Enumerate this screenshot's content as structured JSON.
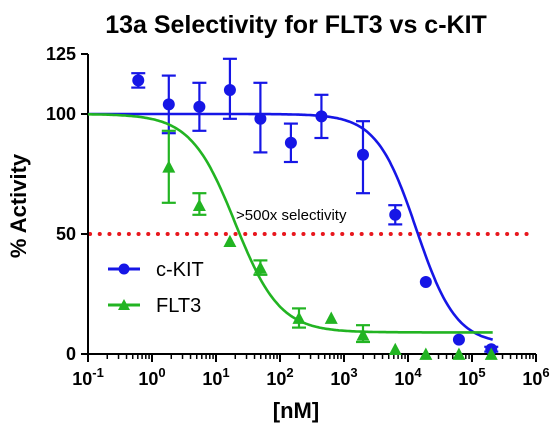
{
  "chart_data": {
    "type": "scatter",
    "title": "13a Selectivity for FLT3 vs c-KIT",
    "xlabel": "[nM]",
    "ylabel": "% Activity",
    "x_scale": "log10",
    "xlim": [
      0.1,
      1000000
    ],
    "ylim": [
      0,
      125
    ],
    "x_ticks": [
      {
        "value": 0.1,
        "base": "10",
        "exp": "-1"
      },
      {
        "value": 1,
        "base": "10",
        "exp": "0"
      },
      {
        "value": 10,
        "base": "10",
        "exp": "1"
      },
      {
        "value": 100,
        "base": "10",
        "exp": "2"
      },
      {
        "value": 1000,
        "base": "10",
        "exp": "3"
      },
      {
        "value": 10000,
        "base": "10",
        "exp": "4"
      },
      {
        "value": 100000,
        "base": "10",
        "exp": "5"
      },
      {
        "value": 1000000,
        "base": "10",
        "exp": "6"
      }
    ],
    "y_ticks": [
      {
        "value": 0,
        "label": "0"
      },
      {
        "value": 50,
        "label": "50"
      },
      {
        "value": 100,
        "label": "100"
      },
      {
        "value": 125,
        "label": "125"
      }
    ],
    "threshold": {
      "y": 50,
      "style": "dotted",
      "color": "#e8171d"
    },
    "annotation": ">500x selectivity",
    "legend_position": "lower-left",
    "series": [
      {
        "name": "c-KIT",
        "color": "#1616e6",
        "marker": "circle",
        "points": [
          {
            "x": 0.61,
            "y": 114,
            "lo": 111,
            "hi": 117
          },
          {
            "x": 1.83,
            "y": 104,
            "lo": 92,
            "hi": 116
          },
          {
            "x": 5.5,
            "y": 103,
            "lo": 93,
            "hi": 113
          },
          {
            "x": 16.5,
            "y": 110,
            "lo": 98,
            "hi": 123
          },
          {
            "x": 49.4,
            "y": 98,
            "lo": 84,
            "hi": 113
          },
          {
            "x": 148,
            "y": 88,
            "lo": 80,
            "hi": 96
          },
          {
            "x": 444,
            "y": 99,
            "lo": 90,
            "hi": 108
          },
          {
            "x": 1980,
            "y": 83,
            "lo": 67,
            "hi": 97
          },
          {
            "x": 6320,
            "y": 58,
            "lo": 54,
            "hi": 62
          },
          {
            "x": 19000,
            "y": 30,
            "lo": 30,
            "hi": 30
          },
          {
            "x": 62500,
            "y": 6,
            "lo": 6,
            "hi": 6
          },
          {
            "x": 200000,
            "y": 2,
            "lo": 1,
            "hi": 3
          }
        ],
        "fit": {
          "top": 100,
          "bottom": 4,
          "ic50": 13500,
          "hill": 1.4
        }
      },
      {
        "name": "FLT3",
        "color": "#22b422",
        "marker": "triangle",
        "points": [
          {
            "x": 1.83,
            "y": 78,
            "lo": 63,
            "hi": 93
          },
          {
            "x": 5.5,
            "y": 62,
            "lo": 58,
            "hi": 67
          },
          {
            "x": 16.5,
            "y": 47,
            "lo": 47,
            "hi": 47
          },
          {
            "x": 49.4,
            "y": 36,
            "lo": 33,
            "hi": 39
          },
          {
            "x": 198,
            "y": 15,
            "lo": 11,
            "hi": 19
          },
          {
            "x": 632,
            "y": 15,
            "lo": 15,
            "hi": 15
          },
          {
            "x": 1980,
            "y": 8,
            "lo": 5,
            "hi": 12
          },
          {
            "x": 6320,
            "y": 2,
            "lo": 2,
            "hi": 2
          },
          {
            "x": 19000,
            "y": 0,
            "lo": 0,
            "hi": 0
          },
          {
            "x": 62500,
            "y": 0,
            "lo": 0,
            "hi": 0
          },
          {
            "x": 200000,
            "y": 0,
            "lo": 0,
            "hi": 0
          }
        ],
        "fit": {
          "top": 100,
          "bottom": 9,
          "ic50": 20,
          "hill": 1.25
        }
      }
    ]
  }
}
